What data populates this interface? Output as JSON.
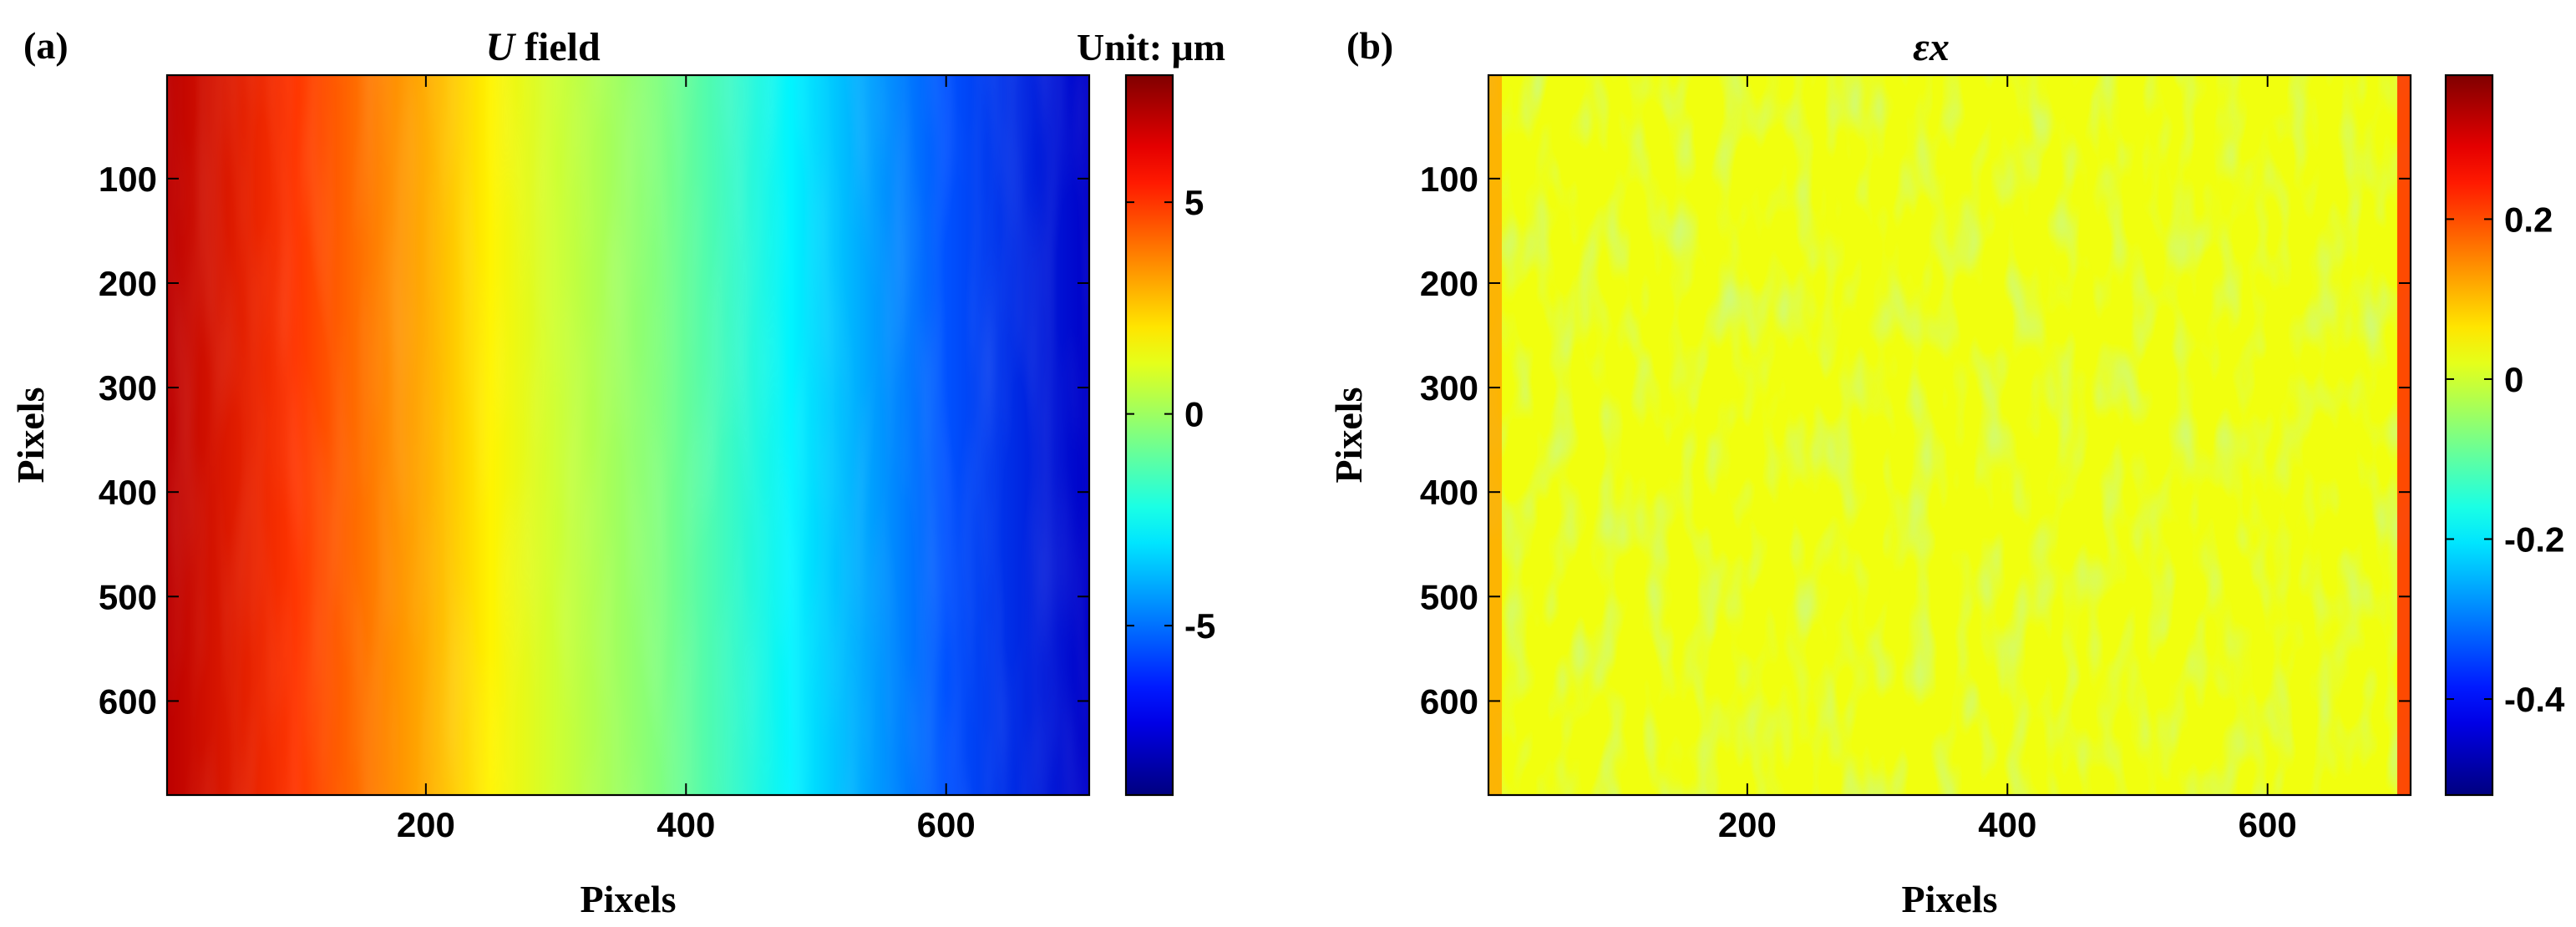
{
  "chart_data": [
    {
      "type": "heatmap",
      "panel_label": "(a)",
      "title_var": "U",
      "title_rest": " field",
      "unit_label": "Unit: μm",
      "xlabel": "Pixels",
      "ylabel": "Pixels",
      "xlim": [
        1,
        710
      ],
      "ylim": [
        1,
        690
      ],
      "y_reversed": true,
      "xticks": [
        200,
        400,
        600
      ],
      "yticks": [
        100,
        200,
        300,
        400,
        500,
        600
      ],
      "colormap": "jet",
      "clim": [
        -9,
        8
      ],
      "colorbar_ticks": [
        5,
        0,
        -5
      ],
      "field_profile": {
        "x": [
          1,
          100,
          200,
          250,
          300,
          380,
          480,
          600,
          710
        ],
        "value": [
          7.0,
          5.0,
          3.0,
          1.8,
          0.8,
          -0.5,
          -2.8,
          -5.5,
          -7.8
        ]
      }
    },
    {
      "type": "heatmap",
      "panel_label": "(b)",
      "title_var": "εx",
      "xlabel": "Pixels",
      "ylabel": "Pixels",
      "xlim": [
        1,
        710
      ],
      "ylim": [
        1,
        690
      ],
      "y_reversed": true,
      "xticks": [
        200,
        400,
        600
      ],
      "yticks": [
        100,
        200,
        300,
        400,
        500,
        600
      ],
      "colormap": "jet",
      "clim": [
        -0.52,
        0.38
      ],
      "colorbar_ticks": [
        0.2,
        0,
        -0.2,
        -0.4
      ],
      "field_mean": 0.03,
      "edge_values": {
        "left": 0.12,
        "right": 0.22
      }
    }
  ]
}
